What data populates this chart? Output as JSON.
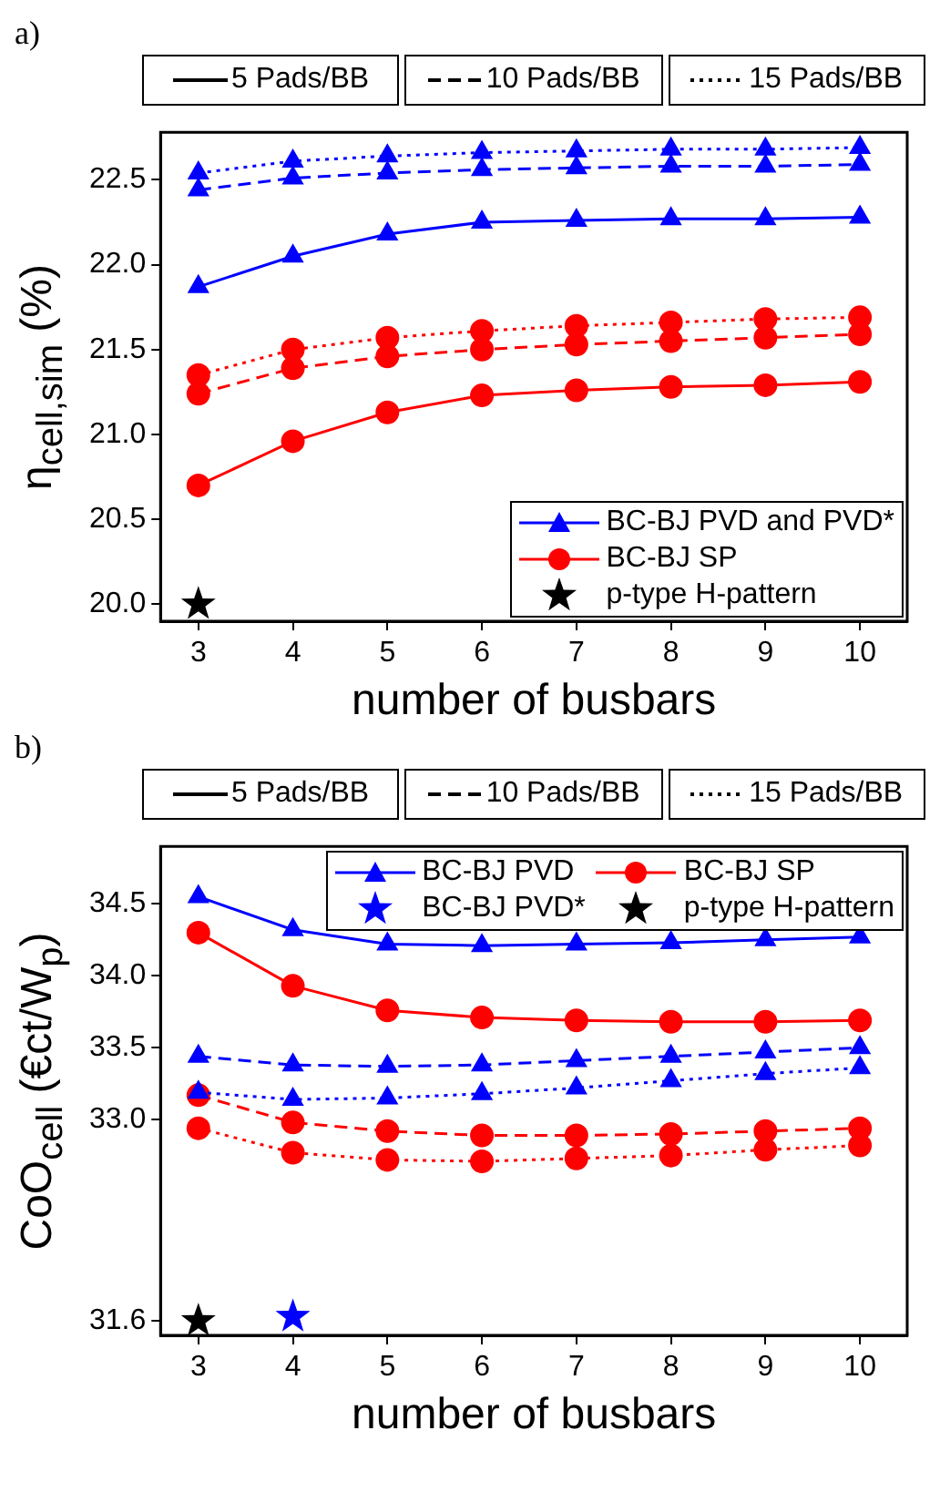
{
  "chart_data": [
    {
      "type": "line",
      "title": "a)",
      "xlabel": "number of busbars",
      "ylabel": "η$_{cell,sim}$ (%)",
      "x": [
        3,
        4,
        5,
        6,
        7,
        8,
        9,
        10
      ],
      "xlim": [
        2.6,
        10.5
      ],
      "xticks": [
        3,
        4,
        5,
        6,
        7,
        8,
        9,
        10
      ],
      "ylim": [
        19.9,
        22.78
      ],
      "yticks": [
        {
          "value": 20,
          "label": "20.0"
        },
        20.5,
        {
          "value": 21,
          "label": "21.0"
        },
        21.5,
        {
          "value": 22,
          "label": "22.0"
        },
        22.5
      ],
      "legend": "bottom right",
      "annotations": [
        "5 Pads/BB",
        "10 Pads/BB",
        "15 Pads/BB"
      ],
      "series": [
        {
          "name": "BC-BJ PVD and PVD*",
          "color": "#0000ff",
          "marker": "triangle",
          "line_style": "solid",
          "values": [
            21.87,
            22.05,
            22.18,
            22.25,
            22.26,
            22.27,
            22.27,
            22.28
          ]
        },
        {
          "color": "#0000ff",
          "marker": "triangle",
          "line_style": "dashed",
          "values": [
            22.44,
            22.51,
            22.54,
            22.56,
            22.57,
            22.58,
            22.58,
            22.59
          ]
        },
        {
          "color": "#0000ff",
          "marker": "triangle",
          "line_style": "dotted",
          "values": [
            22.54,
            22.61,
            22.64,
            22.66,
            22.67,
            22.68,
            22.68,
            22.69
          ]
        },
        {
          "name": "BC-BJ SP",
          "color": "#ff0000",
          "marker": "circle",
          "line_style": "solid",
          "values": [
            20.7,
            20.96,
            21.13,
            21.23,
            21.26,
            21.28,
            21.29,
            21.31
          ]
        },
        {
          "color": "#ff0000",
          "marker": "circle",
          "line_style": "dashed",
          "values": [
            21.24,
            21.39,
            21.46,
            21.5,
            21.53,
            21.55,
            21.57,
            21.59
          ]
        },
        {
          "color": "#ff0000",
          "marker": "circle",
          "line_style": "dotted",
          "values": [
            21.35,
            21.5,
            21.57,
            21.61,
            21.64,
            21.66,
            21.68,
            21.69
          ]
        },
        {
          "name": "p-type H-pattern",
          "type": "scatter",
          "color": "#000000",
          "marker": "star",
          "values": [
            20.0,
            null,
            null,
            null,
            null,
            null,
            null,
            null
          ]
        }
      ]
    },
    {
      "type": "line",
      "title": "b)",
      "xlabel": "number of busbars",
      "ylabel": "CoO$_{cell}$ (€ct/W$_{p}$)",
      "x": [
        3,
        4,
        5,
        6,
        7,
        8,
        9,
        10
      ],
      "xlim": [
        2.6,
        10.5
      ],
      "xticks": [
        3,
        4,
        5,
        6,
        7,
        8,
        9,
        10
      ],
      "ylim": [
        31.5,
        34.9
      ],
      "yticks": [
        31.6,
        {
          "value": 33,
          "label": "33.0"
        },
        33.5,
        {
          "value": 34,
          "label": "34.0"
        },
        34.5
      ],
      "legend": "top right",
      "annotations": [
        "5 Pads/BB",
        "10 Pads/BB",
        "15 Pads/BB"
      ],
      "series": [
        {
          "name": "BC-BJ PVD",
          "color": "#0000ff",
          "marker": "triangle",
          "line_style": "solid",
          "values": [
            34.55,
            34.32,
            34.22,
            34.21,
            34.22,
            34.23,
            34.25,
            34.27
          ]
        },
        {
          "name": "BC-BJ SP",
          "color": "#ff0000",
          "marker": "circle",
          "line_style": "solid",
          "values": [
            34.3,
            33.93,
            33.76,
            33.71,
            33.69,
            33.68,
            33.68,
            33.69
          ]
        },
        {
          "color": "#0000ff",
          "marker": "triangle",
          "line_style": "dashed",
          "values": [
            33.44,
            33.38,
            33.37,
            33.38,
            33.41,
            33.44,
            33.47,
            33.5
          ]
        },
        {
          "color": "#0000ff",
          "marker": "triangle",
          "line_style": "dotted",
          "values": [
            33.19,
            33.14,
            33.15,
            33.18,
            33.22,
            33.27,
            33.32,
            33.36
          ]
        },
        {
          "color": "#ff0000",
          "marker": "circle",
          "line_style": "dashed",
          "values": [
            33.17,
            32.98,
            32.92,
            32.89,
            32.89,
            32.9,
            32.92,
            32.94
          ]
        },
        {
          "color": "#ff0000",
          "marker": "circle",
          "line_style": "dotted",
          "values": [
            32.94,
            32.77,
            32.72,
            32.71,
            32.73,
            32.75,
            32.79,
            32.82
          ]
        },
        {
          "name": "BC-BJ PVD*",
          "type": "scatter",
          "color": "#0000ff",
          "marker": "star",
          "values": [
            null,
            31.63,
            null,
            null,
            null,
            null,
            null,
            null
          ]
        },
        {
          "name": "p-type H-pattern",
          "type": "scatter",
          "color": "#000000",
          "marker": "star",
          "values": [
            31.6,
            null,
            null,
            null,
            null,
            null,
            null,
            null
          ]
        }
      ]
    }
  ]
}
